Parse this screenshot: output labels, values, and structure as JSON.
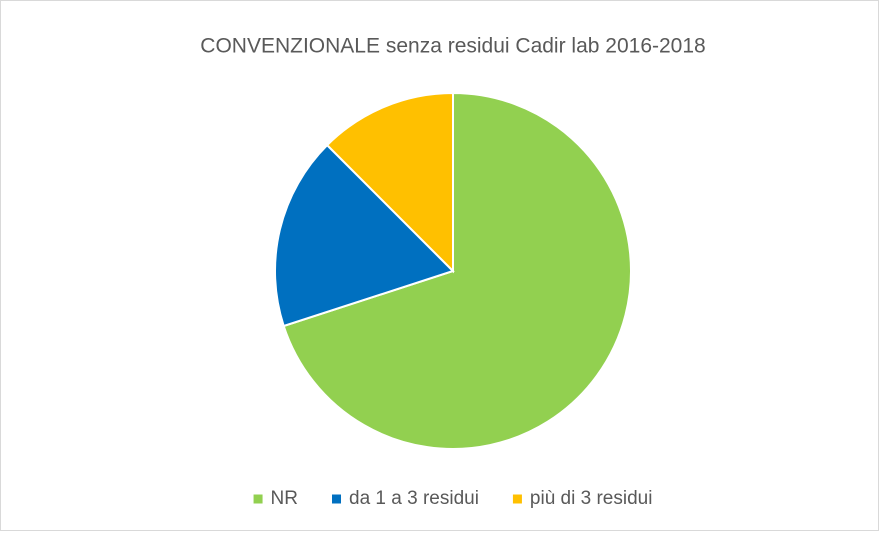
{
  "chart_data": {
    "type": "pie",
    "title": "CONVENZIONALE senza residui Cadir lab 2016-2018",
    "categories": [
      "NR",
      "da 1 a 3 residui",
      "più di 3 residui"
    ],
    "values": [
      70,
      17.5,
      12.5
    ],
    "colors": [
      "#92d050",
      "#0070c0",
      "#ffc000"
    ],
    "legend": "bottom"
  }
}
